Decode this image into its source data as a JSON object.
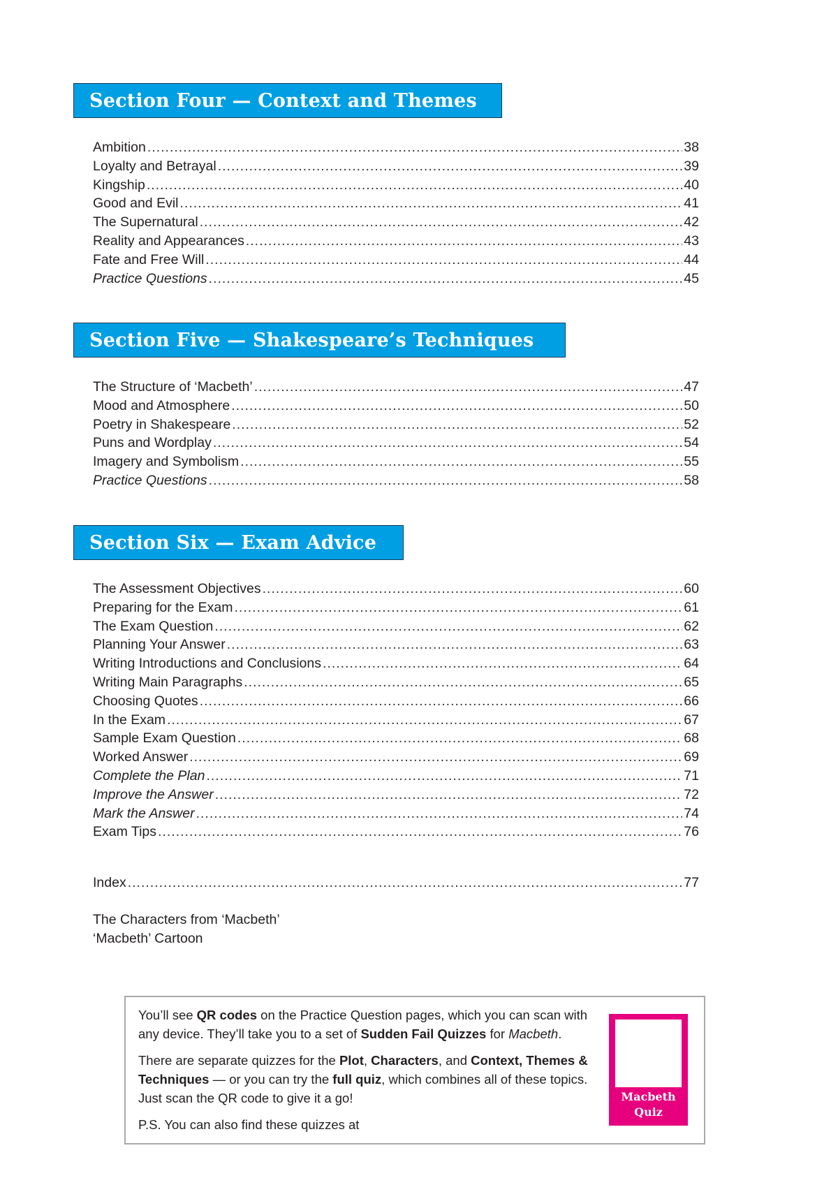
{
  "sections": [
    {
      "title": "Section Four — Context and Themes",
      "entries": [
        {
          "title": "Ambition",
          "page": "38",
          "italic": false
        },
        {
          "title": "Loyalty and Betrayal",
          "page": "39",
          "italic": false
        },
        {
          "title": "Kingship",
          "page": "40",
          "italic": false
        },
        {
          "title": "Good and Evil",
          "page": "41",
          "italic": false
        },
        {
          "title": "The Supernatural",
          "page": "42",
          "italic": false
        },
        {
          "title": "Reality and Appearances",
          "page": "43",
          "italic": false
        },
        {
          "title": "Fate and Free Will",
          "page": "44",
          "italic": false
        },
        {
          "title": "Practice Questions",
          "page": "45",
          "italic": true
        }
      ]
    },
    {
      "title": "Section Five — Shakespeare’s Techniques",
      "entries": [
        {
          "title": "The Structure of ‘Macbeth’",
          "page": "47",
          "italic": false
        },
        {
          "title": "Mood and Atmosphere",
          "page": "50",
          "italic": false
        },
        {
          "title": "Poetry in Shakespeare",
          "page": "52",
          "italic": false
        },
        {
          "title": "Puns and Wordplay",
          "page": "54",
          "italic": false
        },
        {
          "title": "Imagery and Symbolism",
          "page": "55",
          "italic": false
        },
        {
          "title": "Practice Questions",
          "page": "58",
          "italic": true
        }
      ]
    },
    {
      "title": "Section Six — Exam Advice",
      "entries": [
        {
          "title": "The Assessment Objectives",
          "page": "60",
          "italic": false
        },
        {
          "title": "Preparing for the Exam",
          "page": "61",
          "italic": false
        },
        {
          "title": "The Exam Question",
          "page": "62",
          "italic": false
        },
        {
          "title": "Planning Your Answer",
          "page": "63",
          "italic": false
        },
        {
          "title": "Writing Introductions and Conclusions",
          "page": "64",
          "italic": false
        },
        {
          "title": "Writing Main Paragraphs",
          "page": "65",
          "italic": false
        },
        {
          "title": "Choosing Quotes",
          "page": "66",
          "italic": false
        },
        {
          "title": "In the Exam",
          "page": "67",
          "italic": false
        },
        {
          "title": "Sample Exam Question",
          "page": "68",
          "italic": false
        },
        {
          "title": "Worked Answer",
          "page": "69",
          "italic": false
        },
        {
          "title": "Complete the Plan",
          "page": "71",
          "italic": true
        },
        {
          "title": "Improve the Answer",
          "page": "72",
          "italic": true
        },
        {
          "title": "Mark the Answer",
          "page": "74",
          "italic": true
        },
        {
          "title": "Exam Tips",
          "page": "76",
          "italic": false
        }
      ]
    }
  ],
  "index": {
    "title": "Index",
    "page": "77"
  },
  "extras": [
    "The Characters from ‘Macbeth’",
    "‘Macbeth’ Cartoon"
  ],
  "info_box": {
    "p1": {
      "a": "You’ll see ",
      "b": "QR codes",
      "c": " on the Practice Question pages, which you can scan with any device.  They’ll take you to a set of ",
      "d": "Sudden Fail Quizzes",
      "e": " for ",
      "f": "Macbeth",
      "g": "."
    },
    "p2": {
      "a": "There are separate quizzes for the ",
      "b": "Plot",
      "c": ", ",
      "d": "Characters",
      "e": ", and ",
      "f": "Context, Themes & Techniques",
      "g": " — or you can try the ",
      "h": "full quiz",
      "i": ", which combines all of these topics.  Just scan the QR code to give it a go!"
    },
    "p3": "P.S. You can also find these quizzes at",
    "qr_label_1": "Macbeth",
    "qr_label_2": "Quiz"
  },
  "colors": {
    "section_header": "#009fe3",
    "qr_frame": "#e6007e",
    "box_border": "#a7a9ac"
  }
}
